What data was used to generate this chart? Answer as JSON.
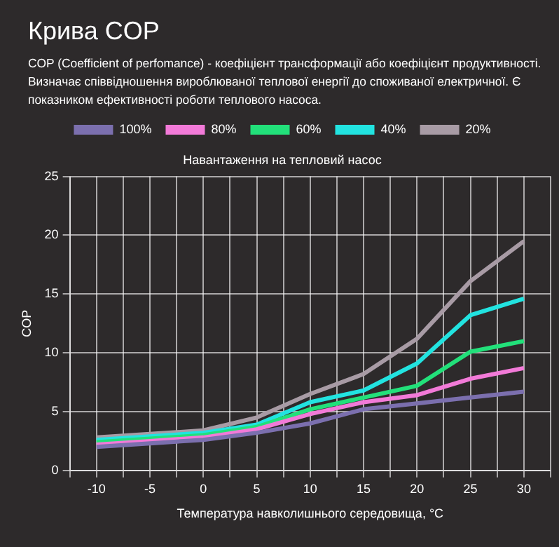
{
  "chart_data": {
    "type": "line",
    "title": "Крива COP",
    "subtitle": "COP (Coefficient of perfomance) - коефіцієнт трансформації або коефіцієнт продуктивності. Визначає співвідношення вироблюваної теплової енергії до споживаної електричної. Є показником ефективності роботи теплового насоса.",
    "legend_title": "Навантаження на тепловий насос",
    "xlabel": "Температура навколишнього середовища, °C",
    "ylabel": "COP",
    "x": [
      -10,
      -5,
      0,
      5,
      10,
      15,
      20,
      25,
      30
    ],
    "series": [
      {
        "name": "100%",
        "color": "#7b6fae",
        "values": [
          2,
          2.3,
          2.6,
          3.2,
          4,
          5.2,
          5.7,
          6.2,
          6.7
        ]
      },
      {
        "name": "80%",
        "color": "#f27ad8",
        "values": [
          2.2,
          2.5,
          2.8,
          3.5,
          4.8,
          5.8,
          6.4,
          7.8,
          8.7
        ]
      },
      {
        "name": "60%",
        "color": "#22e07a",
        "values": [
          2.4,
          2.7,
          3,
          3.7,
          5.2,
          6.2,
          7.2,
          10.1,
          11
        ]
      },
      {
        "name": "40%",
        "color": "#22e3e0",
        "values": [
          2.6,
          2.9,
          3.2,
          3.9,
          5.8,
          6.8,
          9.1,
          13.2,
          14.6
        ]
      },
      {
        "name": "20%",
        "color": "#a89ba5",
        "values": [
          2.8,
          3.1,
          3.4,
          4.5,
          6.5,
          8.2,
          11.2,
          16.1,
          19.5
        ]
      }
    ],
    "xlim": [
      -12.5,
      32.5
    ],
    "xticks": [
      {
        "value": -12.5,
        "label": null
      },
      -10,
      {
        "value": -7.5,
        "label": null
      },
      -5,
      {
        "value": -2.5,
        "label": null
      },
      0,
      {
        "value": 2.5,
        "label": null
      },
      5,
      {
        "value": 7.5,
        "label": null
      },
      10,
      {
        "value": 12.5,
        "label": null
      },
      15,
      {
        "value": 17.5,
        "label": null
      },
      20,
      {
        "value": 22.5,
        "label": null
      },
      25,
      {
        "value": 27.5,
        "label": null
      },
      30,
      {
        "value": 32.5,
        "label": null
      }
    ],
    "ylim": [
      0,
      25
    ],
    "yticks": [
      0,
      5,
      10,
      15,
      20,
      25
    ],
    "grid": true,
    "legend": "top",
    "marker": "none",
    "line_style": "solid"
  }
}
